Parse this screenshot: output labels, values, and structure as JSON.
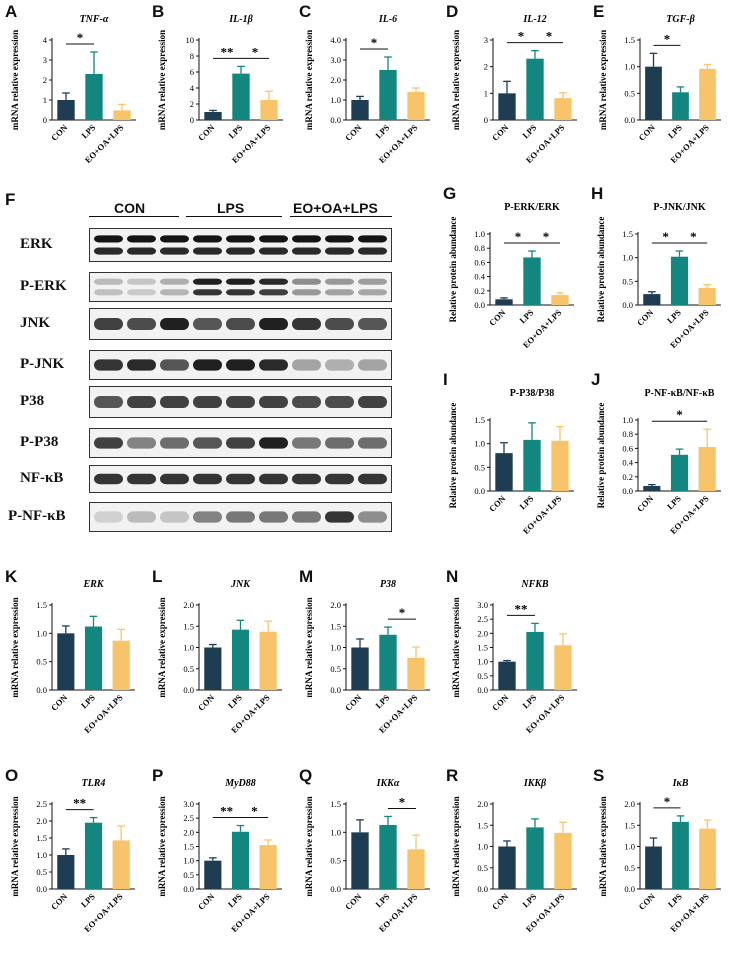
{
  "colors": {
    "con": "#1e3d52",
    "lps": "#13877f",
    "eo": "#f8c46b"
  },
  "groups": [
    "CON",
    "LPS",
    "EO+OA+LPS"
  ],
  "ylabel_mrna": "mRNA relative expression",
  "ylabel_protein": "Relative protein abundance",
  "blot": {
    "letter": "F",
    "groups": [
      "CON",
      "LPS",
      "EO+OA+LPS"
    ],
    "rows": [
      "ERK",
      "P-ERK",
      "JNK",
      "P-JNK",
      "P38",
      "P-P38",
      "NF-κB",
      "P-NF-κB"
    ]
  },
  "chart_data": [
    {
      "letter": "A",
      "type": "bar",
      "title": "TNF-α",
      "title_italic": true,
      "ylabel": "mRNA relative expression",
      "categories": [
        "CON",
        "LPS",
        "EO+OA+LPS"
      ],
      "values": [
        1.0,
        2.3,
        0.48
      ],
      "errors": [
        0.35,
        1.1,
        0.3
      ],
      "ylim": [
        0,
        4
      ],
      "yticks": [
        "0",
        "1",
        "2",
        "3",
        "4"
      ],
      "sig": [
        {
          "from": 0,
          "to": 1,
          "label": "*"
        }
      ]
    },
    {
      "letter": "B",
      "type": "bar",
      "title": "IL-1β",
      "title_italic": true,
      "ylabel": "mRNA relative expression",
      "categories": [
        "CON",
        "LPS",
        "EO+OA+LPS"
      ],
      "values": [
        1.0,
        5.8,
        2.5
      ],
      "errors": [
        0.2,
        0.9,
        1.1
      ],
      "ylim": [
        0,
        10
      ],
      "yticks": [
        "0",
        "2",
        "4",
        "6",
        "8",
        "10"
      ],
      "sig": [
        {
          "from": 0,
          "to": 1,
          "label": "**"
        },
        {
          "from": 1,
          "to": 2,
          "label": "*"
        }
      ]
    },
    {
      "letter": "C",
      "type": "bar",
      "title": "IL-6",
      "title_italic": true,
      "ylabel": "mRNA relative expression",
      "categories": [
        "CON",
        "LPS",
        "EO+OA+LPS"
      ],
      "values": [
        1.0,
        2.5,
        1.4
      ],
      "errors": [
        0.18,
        0.65,
        0.2
      ],
      "ylim": [
        0,
        4
      ],
      "yticks": [
        "0.0",
        "1.0",
        "2.0",
        "3.0",
        "4.0"
      ],
      "sig": [
        {
          "from": 0,
          "to": 1,
          "label": "*"
        }
      ]
    },
    {
      "letter": "D",
      "type": "bar",
      "title": "IL-12",
      "title_italic": true,
      "ylabel": "mRNA relative expression",
      "categories": [
        "CON",
        "LPS",
        "EO+OA+LPS"
      ],
      "values": [
        1.0,
        2.3,
        0.82
      ],
      "errors": [
        0.45,
        0.3,
        0.2
      ],
      "ylim": [
        0,
        3
      ],
      "yticks": [
        "0",
        "1",
        "2",
        "3"
      ],
      "sig": [
        {
          "from": 0,
          "to": 1,
          "label": "*"
        },
        {
          "from": 1,
          "to": 2,
          "label": "*"
        }
      ]
    },
    {
      "letter": "E",
      "type": "bar",
      "title": "TGF-β",
      "title_italic": true,
      "ylabel": "mRNA relative expression",
      "categories": [
        "CON",
        "LPS",
        "EO+OA+LPS"
      ],
      "values": [
        1.0,
        0.52,
        0.96
      ],
      "errors": [
        0.25,
        0.1,
        0.08
      ],
      "ylim": [
        0,
        1.5
      ],
      "yticks": [
        "0.0",
        "0.5",
        "1.0",
        "1.5"
      ],
      "sig": [
        {
          "from": 0,
          "to": 1,
          "label": "*"
        }
      ]
    },
    {
      "letter": "G",
      "type": "bar",
      "title": "P-ERK/ERK",
      "title_italic": false,
      "ylabel": "Relative protein abundance",
      "categories": [
        "CON",
        "LPS",
        "EO+OA+LPS"
      ],
      "values": [
        0.08,
        0.67,
        0.14
      ],
      "errors": [
        0.02,
        0.09,
        0.03
      ],
      "ylim": [
        0,
        1.0
      ],
      "yticks": [
        "0.0",
        "0.2",
        "0.4",
        "0.6",
        "0.8",
        "1.0"
      ],
      "sig": [
        {
          "from": 0,
          "to": 1,
          "label": "*"
        },
        {
          "from": 1,
          "to": 2,
          "label": "*"
        }
      ]
    },
    {
      "letter": "H",
      "type": "bar",
      "title": "P-JNK/JNK",
      "title_italic": false,
      "ylabel": "Relative protein abundance",
      "categories": [
        "CON",
        "LPS",
        "EO+OA+LPS"
      ],
      "values": [
        0.23,
        1.02,
        0.36
      ],
      "errors": [
        0.05,
        0.12,
        0.07
      ],
      "ylim": [
        0,
        1.5
      ],
      "yticks": [
        "0.0",
        "0.5",
        "1.0",
        "1.5"
      ],
      "sig": [
        {
          "from": 0,
          "to": 1,
          "label": "*"
        },
        {
          "from": 1,
          "to": 2,
          "label": "*"
        }
      ]
    },
    {
      "letter": "I",
      "type": "bar",
      "title": "P-P38/P38",
      "title_italic": false,
      "ylabel": "Relative protein abundance",
      "categories": [
        "CON",
        "LPS",
        "EO+OA+LPS"
      ],
      "values": [
        0.8,
        1.08,
        1.06
      ],
      "errors": [
        0.22,
        0.36,
        0.3
      ],
      "ylim": [
        0,
        1.5
      ],
      "yticks": [
        "0.0",
        "0.5",
        "1.0",
        "1.5"
      ],
      "sig": []
    },
    {
      "letter": "J",
      "type": "bar",
      "title": "P-NF-κB/NF-κB",
      "title_italic": false,
      "ylabel": "Relative protein abundance",
      "categories": [
        "CON",
        "LPS",
        "EO+OA+LPS"
      ],
      "values": [
        0.07,
        0.51,
        0.62
      ],
      "errors": [
        0.02,
        0.08,
        0.25
      ],
      "ylim": [
        0,
        1.0
      ],
      "yticks": [
        "0.0",
        "0.2",
        "0.4",
        "0.6",
        "0.8",
        "1.0"
      ],
      "sig": [
        {
          "from": 0,
          "to": 2,
          "label": "*"
        }
      ]
    },
    {
      "letter": "K",
      "type": "bar",
      "title": "ERK",
      "title_italic": true,
      "ylabel": "mRNA relative expression",
      "categories": [
        "CON",
        "LPS",
        "EO+OA+LPS"
      ],
      "values": [
        1.0,
        1.12,
        0.87
      ],
      "errors": [
        0.13,
        0.18,
        0.2
      ],
      "ylim": [
        0,
        1.5
      ],
      "yticks": [
        "0.0",
        "0.5",
        "1.0",
        "1.5"
      ],
      "sig": []
    },
    {
      "letter": "L",
      "type": "bar",
      "title": "JNK",
      "title_italic": true,
      "ylabel": "mRNA relative expression",
      "categories": [
        "CON",
        "LPS",
        "EO+OA+LPS"
      ],
      "values": [
        1.0,
        1.42,
        1.37
      ],
      "errors": [
        0.07,
        0.22,
        0.25
      ],
      "ylim": [
        0,
        2.0
      ],
      "yticks": [
        "0.0",
        "0.5",
        "1.0",
        "1.5",
        "2.0"
      ],
      "sig": []
    },
    {
      "letter": "M",
      "type": "bar",
      "title": "P38",
      "title_italic": true,
      "ylabel": "mRNA relative expression",
      "categories": [
        "CON",
        "LPS",
        "EO+OA+LPS"
      ],
      "values": [
        1.0,
        1.3,
        0.76
      ],
      "errors": [
        0.2,
        0.18,
        0.25
      ],
      "ylim": [
        0,
        2.0
      ],
      "yticks": [
        "0.0",
        "0.5",
        "1.0",
        "1.5",
        "2.0"
      ],
      "sig": [
        {
          "from": 1,
          "to": 2,
          "label": "*"
        }
      ]
    },
    {
      "letter": "N",
      "type": "bar",
      "title": "NFKB",
      "title_italic": true,
      "ylabel": "mRNA relative expression",
      "categories": [
        "CON",
        "LPS",
        "EO+OA+LPS"
      ],
      "values": [
        1.0,
        2.05,
        1.58
      ],
      "errors": [
        0.04,
        0.3,
        0.4
      ],
      "ylim": [
        0,
        3.0
      ],
      "yticks": [
        "0.0",
        "0.5",
        "1.0",
        "1.5",
        "2.0",
        "2.5",
        "3.0"
      ],
      "sig": [
        {
          "from": 0,
          "to": 1,
          "label": "**"
        }
      ]
    },
    {
      "letter": "O",
      "type": "bar",
      "title": "TLR4",
      "title_italic": true,
      "ylabel": "mRNA relative expression",
      "categories": [
        "CON",
        "LPS",
        "EO+OA+LPS"
      ],
      "values": [
        1.0,
        1.95,
        1.43
      ],
      "errors": [
        0.18,
        0.15,
        0.42
      ],
      "ylim": [
        0,
        2.5
      ],
      "yticks": [
        "0.0",
        "0.5",
        "1.0",
        "1.5",
        "2.0",
        "2.5"
      ],
      "sig": [
        {
          "from": 0,
          "to": 1,
          "label": "**"
        }
      ]
    },
    {
      "letter": "P",
      "type": "bar",
      "title": "MyD88",
      "title_italic": true,
      "ylabel": "mRNA relative expression",
      "categories": [
        "CON",
        "LPS",
        "EO+OA+LPS"
      ],
      "values": [
        1.0,
        2.02,
        1.55
      ],
      "errors": [
        0.1,
        0.22,
        0.18
      ],
      "ylim": [
        0,
        3.0
      ],
      "yticks": [
        "0.0",
        "0.5",
        "1.0",
        "1.5",
        "2.0",
        "2.5",
        "3.0"
      ],
      "sig": [
        {
          "from": 0,
          "to": 1,
          "label": "**"
        },
        {
          "from": 1,
          "to": 2,
          "label": "*"
        }
      ]
    },
    {
      "letter": "Q",
      "type": "bar",
      "title": "IKKα",
      "title_italic": true,
      "ylabel": "mRNA relative expression",
      "categories": [
        "CON",
        "LPS",
        "EO+OA+LPS"
      ],
      "values": [
        1.0,
        1.13,
        0.7
      ],
      "errors": [
        0.22,
        0.15,
        0.25
      ],
      "ylim": [
        0,
        1.5
      ],
      "yticks": [
        "0.0",
        "0.5",
        "1.0",
        "1.5"
      ],
      "sig": [
        {
          "from": 1,
          "to": 2,
          "label": "*"
        }
      ]
    },
    {
      "letter": "R",
      "type": "bar",
      "title": "IKKβ",
      "title_italic": true,
      "ylabel": "mRNA relative expression",
      "categories": [
        "CON",
        "LPS",
        "EO+OA+LPS"
      ],
      "values": [
        1.0,
        1.45,
        1.32
      ],
      "errors": [
        0.13,
        0.2,
        0.25
      ],
      "ylim": [
        0,
        2.0
      ],
      "yticks": [
        "0.0",
        "0.5",
        "1.0",
        "1.5",
        "2.0"
      ],
      "sig": []
    },
    {
      "letter": "S",
      "type": "bar",
      "title": "IκB",
      "title_italic": true,
      "ylabel": "mRNA relative expression",
      "categories": [
        "CON",
        "LPS",
        "EO+OA+LPS"
      ],
      "values": [
        1.0,
        1.58,
        1.42
      ],
      "errors": [
        0.2,
        0.14,
        0.2
      ],
      "ylim": [
        0,
        2.0
      ],
      "yticks": [
        "0.0",
        "0.5",
        "1.0",
        "1.5",
        "2.0"
      ],
      "sig": [
        {
          "from": 0,
          "to": 1,
          "label": "*"
        }
      ]
    }
  ]
}
